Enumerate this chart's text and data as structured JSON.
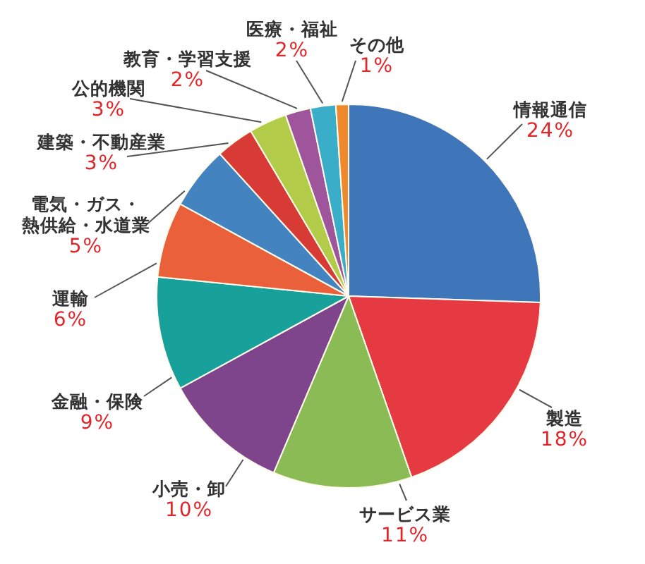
{
  "chart_data": {
    "type": "pie",
    "categories": [
      "情報通信",
      "製造",
      "サービス業",
      "小売・卸",
      "金融・保険",
      "運輸",
      "電気・ガス・熱供給・水道業",
      "建築・不動産業",
      "公的機関",
      "教育・学習支援",
      "医療・福祉",
      "その他"
    ],
    "values": [
      24,
      18,
      11,
      10,
      9,
      6,
      5,
      3,
      3,
      2,
      2,
      1
    ],
    "colors": [
      "#3f76b9",
      "#e63a43",
      "#8bbb55",
      "#7e448c",
      "#18a19a",
      "#e9603a",
      "#4283c0",
      "#d83a35",
      "#b2cc4a",
      "#9e559c",
      "#3aadc8",
      "#f0892b"
    ],
    "value_labels": [
      "24%",
      "18%",
      "11%",
      "10%",
      "9%",
      "6%",
      "5%",
      "3%",
      "3%",
      "2%",
      "2%",
      "1%"
    ]
  }
}
